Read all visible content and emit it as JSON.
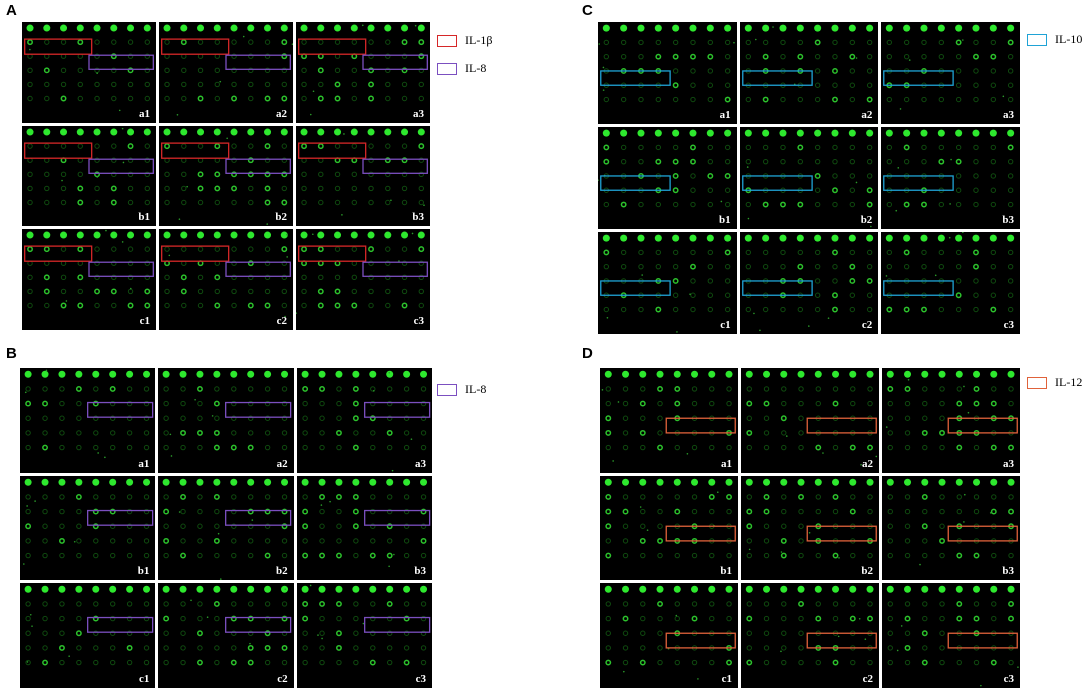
{
  "panels": [
    {
      "label": "A",
      "legend": [
        {
          "text": "IL-1β",
          "color": "#d62728"
        },
        {
          "text": "IL-8",
          "color": "#7b4fc0"
        }
      ],
      "cells": [
        "a1",
        "a2",
        "a3",
        "b1",
        "b2",
        "b3",
        "c1",
        "c2",
        "c3"
      ]
    },
    {
      "label": "B",
      "legend": [
        {
          "text": "IL-8",
          "color": "#7b4fc0"
        }
      ],
      "cells": [
        "a1",
        "a2",
        "a3",
        "b1",
        "b2",
        "b3",
        "c1",
        "c2",
        "c3"
      ]
    },
    {
      "label": "C",
      "legend": [
        {
          "text": "IL-10",
          "color": "#1fa3d6"
        }
      ],
      "cells": [
        "a1",
        "a2",
        "a3",
        "b1",
        "b2",
        "b3",
        "c1",
        "c2",
        "c3"
      ]
    },
    {
      "label": "D",
      "legend": [
        {
          "text": "IL-12",
          "color": "#e0623a"
        }
      ],
      "cells": [
        "a1",
        "a2",
        "a3",
        "b1",
        "b2",
        "b3",
        "c1",
        "c2",
        "c3"
      ]
    }
  ]
}
